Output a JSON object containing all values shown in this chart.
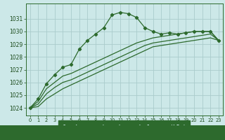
{
  "background_color": "#cce8e8",
  "grid_color": "#aacccc",
  "line_color": "#2d6a2d",
  "text_color": "#1a4a1a",
  "xlabel_bg": "#2d6a2d",
  "xlabel_text": "#cce8e8",
  "xlim": [
    -0.5,
    23.5
  ],
  "ylim": [
    1023.4,
    1032.2
  ],
  "yticks": [
    1024,
    1025,
    1026,
    1027,
    1028,
    1029,
    1030,
    1031
  ],
  "xticks": [
    0,
    1,
    2,
    3,
    4,
    5,
    6,
    7,
    8,
    9,
    10,
    11,
    12,
    13,
    14,
    15,
    16,
    17,
    18,
    19,
    20,
    21,
    22,
    23
  ],
  "series1_x": [
    0,
    1,
    2,
    3,
    4,
    5,
    6,
    7,
    8,
    9,
    10,
    11,
    12,
    13,
    14,
    15,
    16,
    17,
    18,
    19,
    20,
    21,
    22,
    23
  ],
  "series1_y": [
    1024.0,
    1024.7,
    1025.9,
    1026.6,
    1027.2,
    1027.4,
    1028.6,
    1029.3,
    1029.8,
    1030.3,
    1031.3,
    1031.5,
    1031.4,
    1031.1,
    1030.3,
    1030.0,
    1029.8,
    1029.9,
    1029.8,
    1029.9,
    1030.0,
    1030.0,
    1030.0,
    1029.3
  ],
  "series2_x": [
    0,
    1,
    2,
    3,
    4,
    5,
    6,
    7,
    8,
    9,
    10,
    11,
    12,
    13,
    14,
    15,
    16,
    17,
    18,
    19,
    20,
    21,
    22,
    23
  ],
  "series2_y": [
    1024.0,
    1024.5,
    1025.5,
    1026.0,
    1026.5,
    1026.7,
    1027.0,
    1027.3,
    1027.6,
    1027.9,
    1028.2,
    1028.5,
    1028.8,
    1029.1,
    1029.3,
    1029.5,
    1029.6,
    1029.7,
    1029.8,
    1029.9,
    1030.0,
    1030.0,
    1030.0,
    1029.3
  ],
  "series3_x": [
    0,
    1,
    2,
    3,
    4,
    5,
    6,
    7,
    8,
    9,
    10,
    11,
    12,
    13,
    14,
    15,
    16,
    17,
    18,
    19,
    20,
    21,
    22,
    23
  ],
  "series3_y": [
    1024.0,
    1024.3,
    1025.1,
    1025.6,
    1026.0,
    1026.2,
    1026.5,
    1026.8,
    1027.1,
    1027.4,
    1027.7,
    1028.0,
    1028.3,
    1028.6,
    1028.9,
    1029.1,
    1029.2,
    1029.3,
    1029.4,
    1029.5,
    1029.6,
    1029.7,
    1029.8,
    1029.3
  ],
  "series4_x": [
    0,
    1,
    2,
    3,
    4,
    5,
    6,
    7,
    8,
    9,
    10,
    11,
    12,
    13,
    14,
    15,
    16,
    17,
    18,
    19,
    20,
    21,
    22,
    23
  ],
  "series4_y": [
    1024.0,
    1024.1,
    1024.7,
    1025.1,
    1025.5,
    1025.8,
    1026.1,
    1026.4,
    1026.7,
    1027.0,
    1027.3,
    1027.6,
    1027.9,
    1028.2,
    1028.5,
    1028.8,
    1028.9,
    1029.0,
    1029.1,
    1029.2,
    1029.3,
    1029.4,
    1029.5,
    1029.3
  ]
}
